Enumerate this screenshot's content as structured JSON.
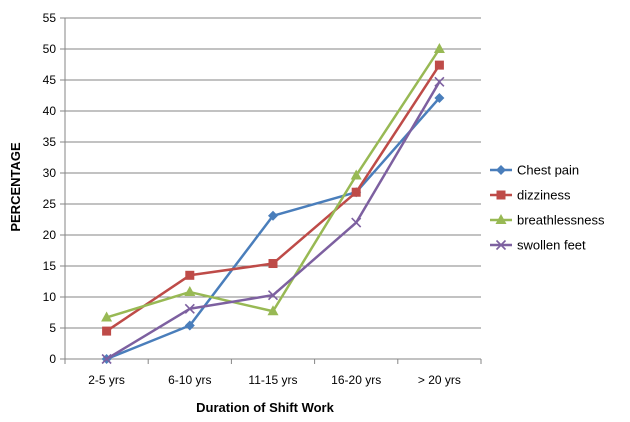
{
  "chart_data": {
    "type": "line",
    "title": "",
    "xlabel": "Duration of Shift Work",
    "ylabel": "PERCENTAGE",
    "categories": [
      "2-5 yrs",
      "6-10 yrs",
      "11-15 yrs",
      "16-20 yrs",
      "> 20 yrs"
    ],
    "ylim": [
      0,
      55
    ],
    "yticks": [
      0,
      5,
      10,
      15,
      20,
      25,
      30,
      35,
      40,
      45,
      50,
      55
    ],
    "grid": true,
    "legend_position": "right",
    "series": [
      {
        "name": "Chest pain",
        "values": [
          0,
          5.4,
          23.1,
          26.9,
          42.1
        ],
        "color": "#4a7ebb",
        "marker": "diamond"
      },
      {
        "name": "dizziness",
        "values": [
          4.5,
          13.5,
          15.4,
          26.9,
          47.4
        ],
        "color": "#be4b48",
        "marker": "square"
      },
      {
        "name": "breathlessness",
        "values": [
          6.7,
          10.8,
          7.7,
          29.6,
          50.0
        ],
        "color": "#98b954",
        "marker": "triangle"
      },
      {
        "name": "swollen feet",
        "values": [
          0,
          8.1,
          10.3,
          22.0,
          44.7
        ],
        "color": "#7d60a0",
        "marker": "x"
      }
    ]
  }
}
